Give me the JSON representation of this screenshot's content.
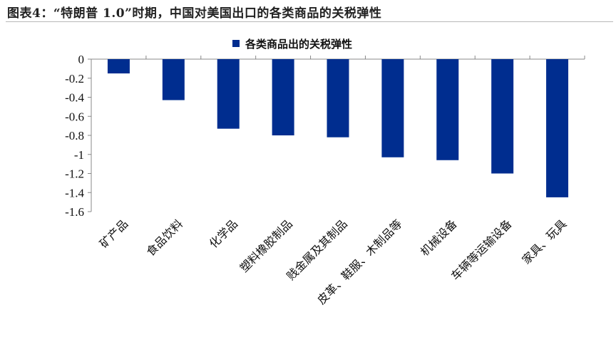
{
  "figure_title": "图表4：“特朗普 1.0”时期，中国对美国出口的各类商品的关税弹性",
  "chart_data": {
    "type": "bar",
    "title": "",
    "xlabel": "",
    "ylabel": "",
    "categories": [
      "矿产品",
      "食品饮料",
      "化学品",
      "塑料橡胶制品",
      "贱金属及其制品",
      "皮革、鞋服、木制品等",
      "机械设备",
      "车辆等运输设备",
      "家具、玩具"
    ],
    "series": [
      {
        "name": "各类商品出的关税弹性",
        "color": "#002d8f",
        "values": [
          -0.15,
          -0.43,
          -0.73,
          -0.8,
          -0.82,
          -1.03,
          -1.06,
          -1.2,
          -1.45
        ]
      }
    ],
    "ylim": [
      -1.6,
      0
    ],
    "yticks": [
      0,
      -0.2,
      -0.4,
      -0.6,
      -0.8,
      -1,
      -1.2,
      -1.4,
      -1.6
    ],
    "grid": false,
    "legend_position": "top-center"
  }
}
